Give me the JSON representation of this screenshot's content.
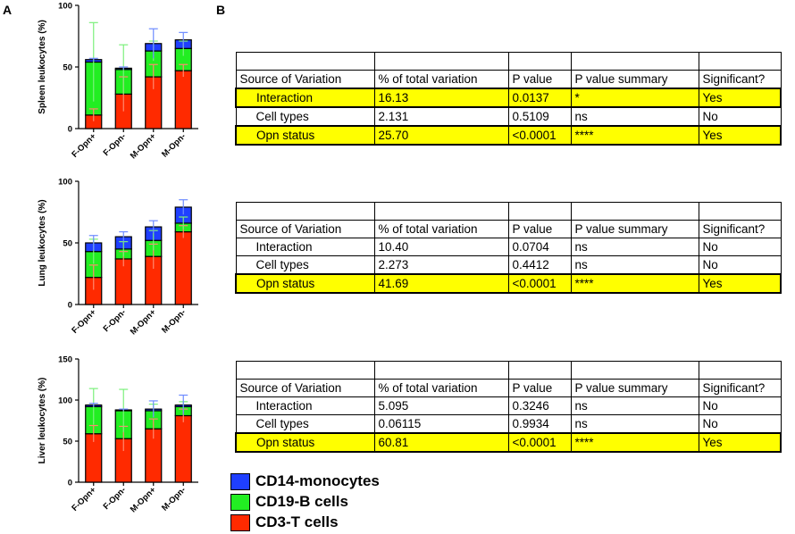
{
  "panel_labels": {
    "a": "A",
    "b": "B"
  },
  "colors": {
    "monocytes": "#1f3fff",
    "b_cells": "#22ee22",
    "t_cells": "#ff2a00",
    "err_mono": "#6f8cff",
    "err_b": "#7cf07c",
    "err_t": "#ff8a70",
    "highlight": "#ffff00"
  },
  "chart_data": [
    {
      "type": "bar",
      "stacked": true,
      "ylabel": "Spleen leukocytes (%)",
      "ylim": [
        0,
        100
      ],
      "yticks": [
        "0",
        "50",
        "100"
      ],
      "categories": [
        "F-Opn+",
        "F-Opn-",
        "M-Opn+",
        "M-Opn-"
      ],
      "series": [
        {
          "name": "CD3-T cells",
          "values": [
            11,
            28,
            42,
            47
          ],
          "err": [
            5,
            14,
            10,
            5
          ]
        },
        {
          "name": "CD19-B cells",
          "values": [
            43,
            20,
            21,
            18
          ],
          "err": [
            32,
            20,
            8,
            6
          ]
        },
        {
          "name": "CD14-monocytes",
          "values": [
            2,
            1,
            6,
            7
          ],
          "err": [
            1,
            1,
            12,
            6
          ]
        }
      ]
    },
    {
      "type": "bar",
      "stacked": true,
      "ylabel": "Lung leukocytes (%)",
      "ylim": [
        0,
        100
      ],
      "yticks": [
        "0",
        "50",
        "100"
      ],
      "categories": [
        "F-Opn+",
        "F-Opn-",
        "M-Opn+",
        "M-Opn-"
      ],
      "series": [
        {
          "name": "CD3-T cells",
          "values": [
            22,
            37,
            39,
            59
          ],
          "err": [
            10,
            6,
            10,
            5
          ]
        },
        {
          "name": "CD19-B cells",
          "values": [
            21,
            8,
            13,
            7
          ],
          "err": [
            10,
            6,
            8,
            5
          ]
        },
        {
          "name": "CD14-monocytes",
          "values": [
            7,
            10,
            11,
            13
          ],
          "err": [
            6,
            4,
            5,
            6
          ]
        }
      ]
    },
    {
      "type": "bar",
      "stacked": true,
      "ylabel": "Liver leukocytes (%)",
      "ylim": [
        0,
        150
      ],
      "yticks": [
        "0",
        "50",
        "100",
        "150"
      ],
      "categories": [
        "F-Opn+",
        "F-Opn-",
        "M-Opn+",
        "M-Opn-"
      ],
      "series": [
        {
          "name": "CD3-T cells",
          "values": [
            59,
            53,
            65,
            81
          ],
          "err": [
            10,
            15,
            12,
            8
          ]
        },
        {
          "name": "CD19-B cells",
          "values": [
            33,
            34,
            22,
            11
          ],
          "err": [
            22,
            26,
            8,
            6
          ]
        },
        {
          "name": "CD14-monocytes",
          "values": [
            2,
            1,
            2,
            2
          ],
          "err": [
            2,
            1,
            10,
            12
          ]
        }
      ]
    }
  ],
  "tables": [
    {
      "headers": [
        "Source of Variation",
        "% of total variation",
        "P value",
        "P value summary",
        "Significant?"
      ],
      "rows": [
        {
          "cells": [
            "Interaction",
            "16.13",
            "0.0137",
            "*",
            "Yes"
          ],
          "highlight": true
        },
        {
          "cells": [
            "Cell types",
            "2.131",
            "0.5109",
            "ns",
            "No"
          ],
          "highlight": false
        },
        {
          "cells": [
            "Opn status",
            "25.70",
            "<0.0001",
            "****",
            "Yes"
          ],
          "highlight": true
        }
      ]
    },
    {
      "headers": [
        "Source of Variation",
        "% of total variation",
        "P value",
        "P value summary",
        "Significant?"
      ],
      "rows": [
        {
          "cells": [
            "Interaction",
            "10.40",
            "0.0704",
            "ns",
            "No"
          ],
          "highlight": false
        },
        {
          "cells": [
            "Cell types",
            "2.273",
            "0.4412",
            "ns",
            "No"
          ],
          "highlight": false
        },
        {
          "cells": [
            "Opn status",
            "41.69",
            "<0.0001",
            "****",
            "Yes"
          ],
          "highlight": true
        }
      ]
    },
    {
      "headers": [
        "Source of Variation",
        "% of total variation",
        "P value",
        "P value summary",
        "Significant?"
      ],
      "rows": [
        {
          "cells": [
            "Interaction",
            "5.095",
            "0.3246",
            "ns",
            "No"
          ],
          "highlight": false
        },
        {
          "cells": [
            "Cell types",
            "0.06115",
            "0.9934",
            "ns",
            "No"
          ],
          "highlight": false
        },
        {
          "cells": [
            "Opn status",
            "60.81",
            "<0.0001",
            "****",
            "Yes"
          ],
          "highlight": true
        }
      ]
    }
  ],
  "legend": [
    {
      "label": "CD14-monocytes",
      "color_key": "monocytes"
    },
    {
      "label": "CD19-B cells",
      "color_key": "b_cells"
    },
    {
      "label": "CD3-T cells",
      "color_key": "t_cells"
    }
  ]
}
